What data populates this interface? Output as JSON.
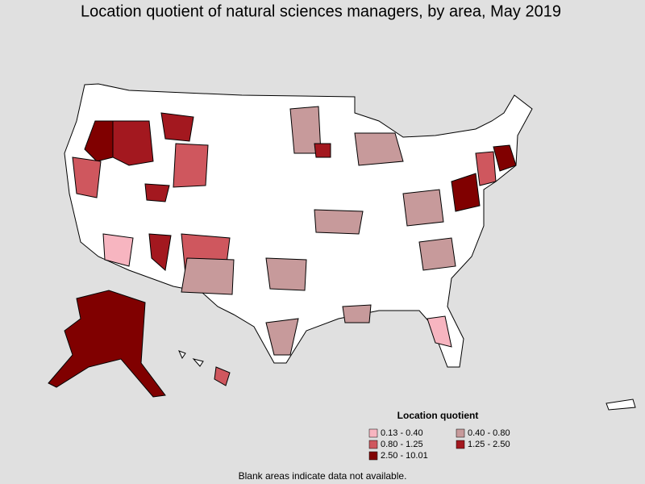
{
  "title": "Location quotient of natural sciences managers, by area, May 2019",
  "legend": {
    "title": "Location quotient",
    "items": [
      {
        "label": "0.13 - 0.40",
        "color": "#f7b5c0"
      },
      {
        "label": "0.40 - 0.80",
        "color": "#c79a9b"
      },
      {
        "label": "0.80 - 1.25",
        "color": "#cf575e"
      },
      {
        "label": "1.25 - 2.50",
        "color": "#a3181f"
      },
      {
        "label": "2.50 - 10.01",
        "color": "#800000"
      }
    ]
  },
  "footnote": "Blank areas indicate data not available."
}
